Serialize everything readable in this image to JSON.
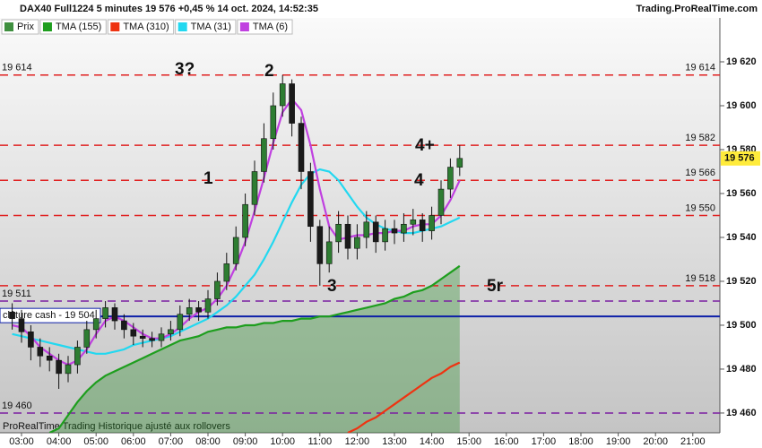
{
  "header": {
    "title": "DAX40 Full1224 5 minutes 19 576 +0,45 % 14 oct. 2024, 14:52:35",
    "site": "Trading.ProRealTime.com"
  },
  "footer": "ProRealTime Trading  Historique ajusté aux rollovers",
  "chart_data": {
    "type": "candlestick",
    "x": [
      "02:45",
      "03:00",
      "03:15",
      "03:30",
      "03:45",
      "04:00",
      "04:15",
      "04:30",
      "04:45",
      "05:00",
      "05:15",
      "05:30",
      "05:45",
      "06:00",
      "06:15",
      "06:30",
      "06:45",
      "07:00",
      "07:15",
      "07:30",
      "07:45",
      "08:00",
      "08:15",
      "08:30",
      "08:45",
      "09:00",
      "09:15",
      "09:30",
      "09:45",
      "10:00",
      "10:15",
      "10:30",
      "10:45",
      "11:00",
      "11:15",
      "11:30",
      "11:45",
      "12:00",
      "12:15",
      "12:30",
      "12:45",
      "13:00",
      "13:15",
      "13:30",
      "13:45",
      "14:00",
      "14:15",
      "14:30",
      "14:45"
    ],
    "price": {
      "name": "Prix",
      "color": "#3f8f3f",
      "up_color": "#2e7d32",
      "down_color": "#1a1a1a",
      "open": [
        19506,
        19503,
        19497,
        19490,
        19486,
        19484,
        19478,
        19482,
        19490,
        19498,
        19503,
        19508,
        19502,
        19498,
        19495,
        19494,
        19493,
        19496,
        19498,
        19505,
        19508,
        19506,
        19512,
        19520,
        19528,
        19540,
        19555,
        19570,
        19585,
        19600,
        19610,
        19592,
        19570,
        19545,
        19528,
        19538,
        19546,
        19535,
        19540,
        19547,
        19538,
        19544,
        19542,
        19546,
        19548,
        19543,
        19550,
        19562,
        19572
      ],
      "high": [
        19510,
        19507,
        19500,
        19494,
        19490,
        19487,
        19486,
        19493,
        19502,
        19507,
        19511,
        19510,
        19505,
        19501,
        19498,
        19497,
        19499,
        19502,
        19509,
        19512,
        19511,
        19516,
        19524,
        19533,
        19545,
        19560,
        19575,
        19592,
        19606,
        19614,
        19612,
        19595,
        19574,
        19548,
        19545,
        19552,
        19550,
        19546,
        19552,
        19550,
        19548,
        19548,
        19551,
        19553,
        19551,
        19554,
        19566,
        19576,
        19582
      ],
      "low": [
        19498,
        19492,
        19484,
        19481,
        19479,
        19471,
        19474,
        19478,
        19487,
        19494,
        19499,
        19498,
        19494,
        19491,
        19490,
        19490,
        19490,
        19493,
        19495,
        19502,
        19502,
        19503,
        19509,
        19516,
        19525,
        19536,
        19550,
        19565,
        19580,
        19595,
        19586,
        19562,
        19538,
        19518,
        19524,
        19533,
        19530,
        19530,
        19535,
        19533,
        19534,
        19537,
        19538,
        19541,
        19538,
        19539,
        19546,
        19558,
        19568
      ],
      "close": [
        19503,
        19497,
        19490,
        19486,
        19484,
        19478,
        19482,
        19490,
        19498,
        19503,
        19508,
        19502,
        19498,
        19495,
        19494,
        19493,
        19496,
        19498,
        19505,
        19508,
        19506,
        19512,
        19520,
        19528,
        19540,
        19555,
        19570,
        19585,
        19600,
        19610,
        19592,
        19570,
        19545,
        19528,
        19538,
        19546,
        19535,
        19540,
        19547,
        19538,
        19544,
        19542,
        19546,
        19548,
        19543,
        19550,
        19562,
        19572,
        19576
      ]
    },
    "series": [
      {
        "name": "TMA (155)",
        "color": "#1e9e1e",
        "fill_color": "rgba(40,140,40,0.35)",
        "values": [
          null,
          null,
          null,
          null,
          19451,
          19453,
          19459,
          19465,
          19470,
          19474,
          19477,
          19479,
          19481,
          19483,
          19485,
          19487,
          19489,
          19491,
          19493,
          19494,
          19495,
          19497,
          19498,
          19499,
          19499,
          19500,
          19500,
          19501,
          19501,
          19502,
          19502,
          19503,
          19503,
          19504,
          19504,
          19505,
          19506,
          19507,
          19508,
          19509,
          19510,
          19512,
          19513,
          19515,
          19516,
          19518,
          19521,
          19524,
          19527
        ]
      },
      {
        "name": "TMA (310)",
        "color": "#ee3311",
        "values": [
          null,
          null,
          null,
          null,
          null,
          null,
          null,
          null,
          null,
          null,
          null,
          null,
          null,
          null,
          null,
          null,
          null,
          null,
          null,
          null,
          null,
          null,
          null,
          null,
          null,
          null,
          null,
          null,
          null,
          null,
          null,
          null,
          null,
          null,
          null,
          null,
          19451,
          19453,
          19456,
          19458,
          19461,
          19464,
          19467,
          19470,
          19473,
          19476,
          19478,
          19481,
          19483
        ]
      },
      {
        "name": "TMA (31)",
        "color": "#22d8f0",
        "values": [
          19496,
          19495,
          19494,
          19493,
          19492,
          19491,
          19490,
          19489,
          19488,
          19487,
          19487,
          19488,
          19489,
          19491,
          19492,
          19493,
          19494,
          19495,
          19497,
          19499,
          19501,
          19503,
          19506,
          19509,
          19513,
          19518,
          19523,
          19530,
          19538,
          19547,
          19556,
          19564,
          19569,
          19571,
          19570,
          19566,
          19560,
          19554,
          19549,
          19546,
          19544,
          19543,
          19542,
          19542,
          19543,
          19544,
          19545,
          19547,
          19549
        ]
      },
      {
        "name": "TMA (6)",
        "color": "#c040e0",
        "values": [
          19500,
          19499,
          19495,
          19490,
          19487,
          19484,
          19482,
          19484,
          19489,
          19496,
          19502,
          19504,
          19502,
          19499,
          19496,
          19494,
          19494,
          19496,
          19499,
          19503,
          19506,
          19508,
          19512,
          19518,
          19527,
          19538,
          19552,
          19567,
          19583,
          19597,
          19603,
          19598,
          19582,
          19562,
          19545,
          19539,
          19540,
          19541,
          19541,
          19542,
          19542,
          19543,
          19543,
          19545,
          19546,
          19546,
          19550,
          19557,
          19566
        ]
      }
    ],
    "ylim": [
      19451,
      19640
    ],
    "yticks": [
      {
        "value": 19460,
        "label": "19 460"
      },
      {
        "value": 19480,
        "label": "19 480"
      },
      {
        "value": 19500,
        "label": "19 500"
      },
      {
        "value": 19520,
        "label": "19 520"
      },
      {
        "value": 19540,
        "label": "19 540"
      },
      {
        "value": 19560,
        "label": "19 560"
      },
      {
        "value": 19580,
        "label": "19 580"
      },
      {
        "value": 19600,
        "label": "19 600"
      },
      {
        "value": 19620,
        "label": "19 620"
      }
    ],
    "xticks": [
      "03:00",
      "04:00",
      "05:00",
      "06:00",
      "07:00",
      "08:00",
      "09:00",
      "10:00",
      "11:00",
      "12:00",
      "13:00",
      "14:00",
      "15:00",
      "16:00",
      "17:00",
      "18:00",
      "19:00",
      "20:00",
      "21:00"
    ],
    "levels": [
      {
        "value": 19614,
        "label": "19 614",
        "color": "#7b1fa2",
        "label_side": "left"
      },
      {
        "value": 19511,
        "label": "19 511",
        "color": "#7b1fa2",
        "label_side": "left"
      },
      {
        "value": 19460,
        "label": "19 460",
        "color": "#7b1fa2",
        "label_side": "left"
      },
      {
        "value": 19614,
        "label": "19 614",
        "color": "#e02020",
        "label_side": "right"
      },
      {
        "value": 19582,
        "label": "19 582",
        "color": "#e02020",
        "label_side": "right"
      },
      {
        "value": 19566,
        "label": "19 566",
        "color": "#e02020",
        "label_side": "right"
      },
      {
        "value": 19550,
        "label": "19 550",
        "color": "#e02020",
        "label_side": "right"
      },
      {
        "value": 19518,
        "label": "19 518",
        "color": "#e02020",
        "label_side": "right"
      }
    ],
    "cash_close": {
      "value": 19504,
      "label": "clôture cash -  19 504",
      "color": "#0d1fa8"
    },
    "current": {
      "value": 19576,
      "label": "19 576",
      "color": "#ffeb3b"
    },
    "annotations": [
      {
        "text": "3?",
        "color": "#7b1fa2"
      },
      {
        "text": "2",
        "color": "#e03030"
      },
      {
        "text": "1",
        "color": "#e03030"
      },
      {
        "text": "4+",
        "color": "#e03030"
      },
      {
        "text": "4",
        "color": "#e03030"
      },
      {
        "text": "3",
        "color": "#e03030"
      },
      {
        "text": "5r",
        "color": "#e03030"
      }
    ]
  }
}
